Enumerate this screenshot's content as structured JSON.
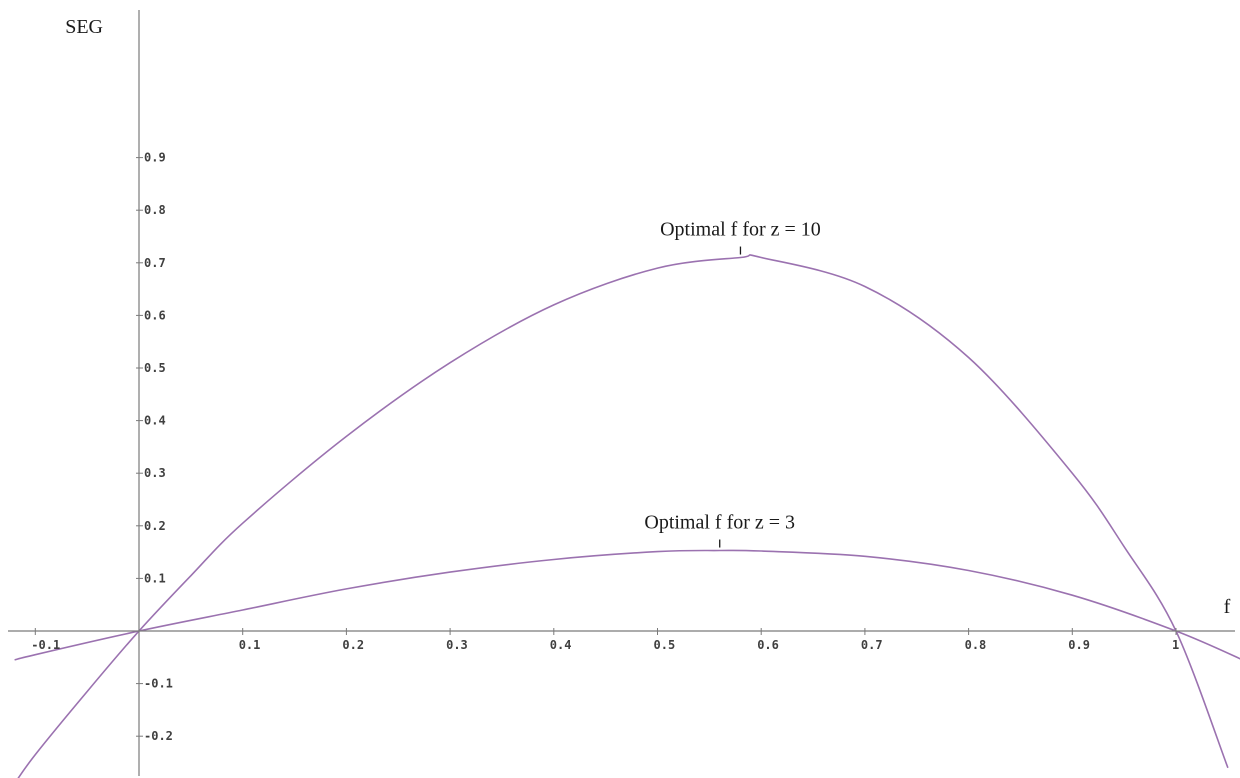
{
  "chart_data": {
    "type": "line",
    "title": "",
    "xlabel": "f",
    "ylabel": "SEG",
    "xlim": [
      -0.13,
      1.07
    ],
    "ylim": [
      -0.25,
      0.97
    ],
    "grid": false,
    "x_ticks": [
      {
        "value": -0.1,
        "label": "-0.1"
      },
      {
        "value": 0.1,
        "label": "0.1"
      },
      {
        "value": 0.2,
        "label": "0.2"
      },
      {
        "value": 0.3,
        "label": "0.3"
      },
      {
        "value": 0.4,
        "label": "0.4"
      },
      {
        "value": 0.5,
        "label": "0.5"
      },
      {
        "value": 0.6,
        "label": "0.6"
      },
      {
        "value": 0.7,
        "label": "0.7"
      },
      {
        "value": 0.8,
        "label": "0.8"
      },
      {
        "value": 0.9,
        "label": "0.9"
      },
      {
        "value": 1,
        "label": "1"
      }
    ],
    "y_ticks": [
      {
        "value": 0.9,
        "label": "0.9"
      },
      {
        "value": 0.8,
        "label": "0.8"
      },
      {
        "value": 0.7,
        "label": "0.7"
      },
      {
        "value": 0.6,
        "label": "0.6"
      },
      {
        "value": 0.5,
        "label": "0.5"
      },
      {
        "value": 0.4,
        "label": "0.4"
      },
      {
        "value": 0.3,
        "label": "0.3"
      },
      {
        "value": 0.2,
        "label": "0.2"
      },
      {
        "value": 0.1,
        "label": "0.1"
      },
      {
        "value": -0.1,
        "label": "-0.1"
      },
      {
        "value": -0.2,
        "label": "-0.2"
      }
    ],
    "series": [
      {
        "id": "z10",
        "color": "#9b72b0",
        "x": [
          -0.12,
          -0.1,
          -0.05,
          0,
          0.05,
          0.1,
          0.2,
          0.3,
          0.4,
          0.5,
          0.58,
          0.6,
          0.7,
          0.8,
          0.9,
          0.95,
          1.0,
          1.05
        ],
        "y": [
          -0.29,
          -0.235,
          -0.115,
          0,
          0.105,
          0.205,
          0.37,
          0.51,
          0.62,
          0.69,
          0.71,
          0.71,
          0.655,
          0.52,
          0.3,
          0.16,
          0,
          -0.26
        ]
      },
      {
        "id": "z3",
        "color": "#9b72b0",
        "x": [
          -0.12,
          -0.1,
          0,
          0.1,
          0.2,
          0.3,
          0.4,
          0.5,
          0.56,
          0.6,
          0.7,
          0.8,
          0.9,
          1.0,
          1.07
        ],
        "y": [
          -0.055,
          -0.045,
          0,
          0.04,
          0.08,
          0.112,
          0.136,
          0.151,
          0.153,
          0.152,
          0.142,
          0.115,
          0.068,
          0,
          -0.06
        ]
      }
    ],
    "annotations": [
      {
        "text": "Optimal f for z = 10",
        "x": 0.58,
        "y": 0.71
      },
      {
        "text": "Optimal f for z = 3",
        "x": 0.56,
        "y": 0.153
      }
    ]
  }
}
